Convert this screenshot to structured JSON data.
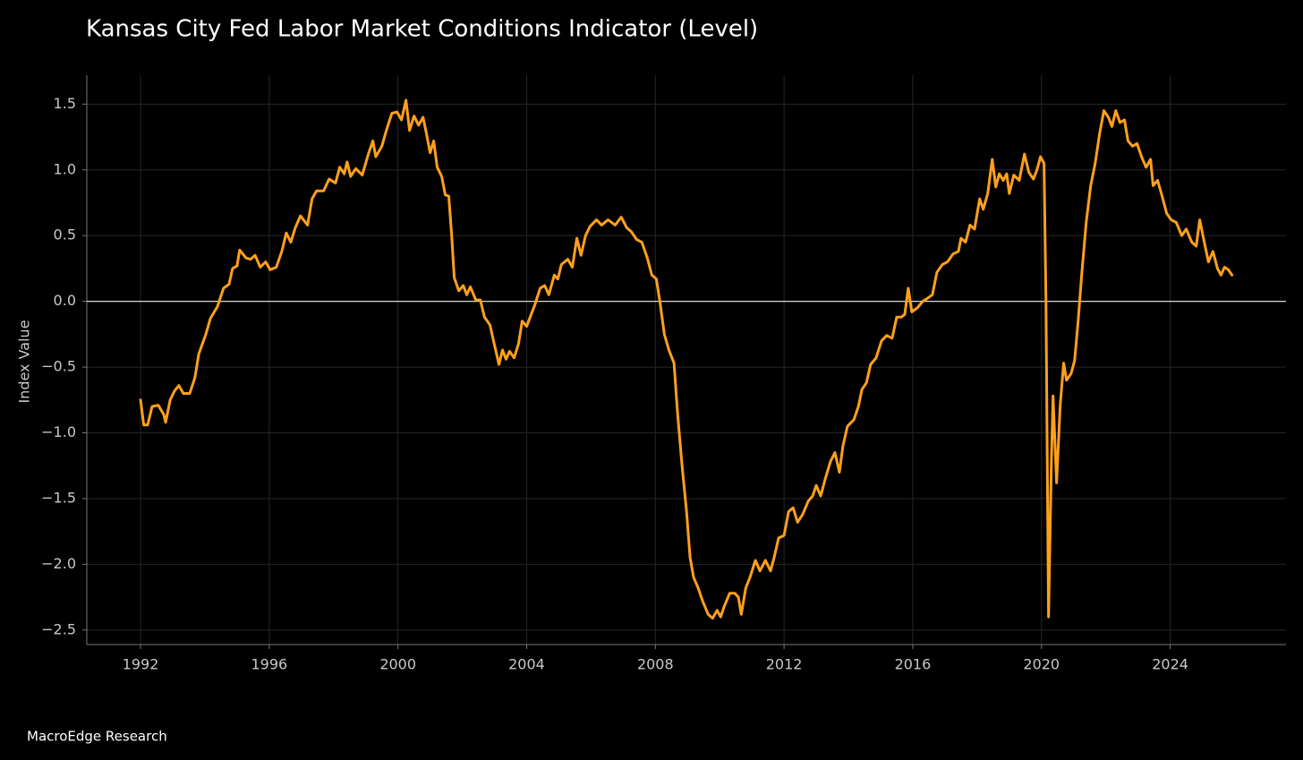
{
  "chart_data": {
    "type": "line",
    "title": "Kansas City Fed Labor Market Conditions Indicator (Level)",
    "y_label": "Index Value",
    "source": "MacroEdge Research",
    "color": "#ffa01c",
    "grid": true,
    "zero_line": true,
    "xlim": [
      1990.33,
      2027.6
    ],
    "ylim": [
      -2.61,
      1.72
    ],
    "xticks": [
      1992,
      1996,
      2000,
      2004,
      2008,
      2012,
      2016,
      2020,
      2024
    ],
    "yticks": [
      {
        "value": -2.5,
        "label": "−2.5"
      },
      {
        "value": -2.0,
        "label": "−2.0"
      },
      {
        "value": -1.5,
        "label": "−1.5"
      },
      {
        "value": -1.0,
        "label": "−1.0"
      },
      {
        "value": -0.5,
        "label": "−0.5"
      },
      {
        "value": 0.0,
        "label": "0.0"
      },
      {
        "value": 0.5,
        "label": "0.5"
      },
      {
        "value": 1.0,
        "label": "1.0"
      },
      1.5
    ],
    "x": [
      1992.0,
      1992.1,
      1992.22,
      1992.36,
      1992.55,
      1992.72,
      1992.78,
      1992.92,
      1993.06,
      1993.19,
      1993.33,
      1993.53,
      1993.69,
      1993.81,
      1994.03,
      1994.17,
      1994.39,
      1994.58,
      1994.75,
      1994.86,
      1995.0,
      1995.08,
      1995.28,
      1995.42,
      1995.56,
      1995.72,
      1995.89,
      1996.03,
      1996.22,
      1996.39,
      1996.53,
      1996.67,
      1996.81,
      1996.97,
      1997.19,
      1997.33,
      1997.47,
      1997.69,
      1997.86,
      1998.06,
      1998.19,
      1998.33,
      1998.42,
      1998.53,
      1998.69,
      1998.89,
      1999.08,
      1999.22,
      1999.31,
      1999.5,
      1999.64,
      1999.81,
      1999.97,
      2000.11,
      2000.25,
      2000.36,
      2000.5,
      2000.64,
      2000.78,
      2000.89,
      2001.0,
      2001.11,
      2001.22,
      2001.36,
      2001.47,
      2001.58,
      2001.67,
      2001.75,
      2001.89,
      2002.03,
      2002.14,
      2002.25,
      2002.42,
      2002.56,
      2002.69,
      2002.86,
      2002.97,
      2003.14,
      2003.25,
      2003.36,
      2003.47,
      2003.61,
      2003.75,
      2003.86,
      2004.0,
      2004.14,
      2004.25,
      2004.42,
      2004.56,
      2004.69,
      2004.86,
      2004.97,
      2005.08,
      2005.28,
      2005.42,
      2005.56,
      2005.69,
      2005.83,
      2005.97,
      2006.17,
      2006.33,
      2006.53,
      2006.75,
      2006.94,
      2007.11,
      2007.25,
      2007.42,
      2007.58,
      2007.75,
      2007.89,
      2008.03,
      2008.14,
      2008.28,
      2008.42,
      2008.58,
      2008.69,
      2008.83,
      2008.97,
      2009.08,
      2009.19,
      2009.33,
      2009.47,
      2009.64,
      2009.78,
      2009.92,
      2010.03,
      2010.14,
      2010.31,
      2010.47,
      2010.58,
      2010.67,
      2010.81,
      2010.94,
      2011.11,
      2011.25,
      2011.42,
      2011.58,
      2011.69,
      2011.83,
      2012.0,
      2012.14,
      2012.28,
      2012.42,
      2012.58,
      2012.75,
      2012.89,
      2013.0,
      2013.14,
      2013.28,
      2013.44,
      2013.58,
      2013.72,
      2013.83,
      2013.97,
      2014.17,
      2014.31,
      2014.42,
      2014.56,
      2014.69,
      2014.86,
      2015.03,
      2015.19,
      2015.36,
      2015.5,
      2015.64,
      2015.75,
      2015.86,
      2015.97,
      2016.14,
      2016.31,
      2016.44,
      2016.61,
      2016.75,
      2016.92,
      2017.08,
      2017.25,
      2017.42,
      2017.5,
      2017.64,
      2017.78,
      2017.92,
      2018.08,
      2018.19,
      2018.33,
      2018.47,
      2018.58,
      2018.69,
      2018.81,
      2018.92,
      2019.0,
      2019.14,
      2019.31,
      2019.47,
      2019.61,
      2019.75,
      2019.86,
      2019.97,
      2020.08,
      2020.14,
      2020.19,
      2020.22,
      2020.31,
      2020.36,
      2020.47,
      2020.58,
      2020.69,
      2020.78,
      2020.92,
      2021.03,
      2021.14,
      2021.25,
      2021.39,
      2021.53,
      2021.67,
      2021.81,
      2021.94,
      2022.08,
      2022.19,
      2022.31,
      2022.44,
      2022.58,
      2022.69,
      2022.83,
      2022.97,
      2023.11,
      2023.25,
      2023.39,
      2023.47,
      2023.61,
      2023.75,
      2023.89,
      2024.03,
      2024.19,
      2024.36,
      2024.5,
      2024.67,
      2024.81,
      2024.92,
      2025.06,
      2025.19,
      2025.33,
      2025.47,
      2025.58,
      2025.69,
      2025.81,
      2025.92
    ],
    "values": [
      -0.75,
      -0.94,
      -0.94,
      -0.8,
      -0.79,
      -0.86,
      -0.92,
      -0.75,
      -0.68,
      -0.64,
      -0.7,
      -0.7,
      -0.58,
      -0.4,
      -0.25,
      -0.13,
      -0.04,
      0.1,
      0.13,
      0.25,
      0.27,
      0.39,
      0.33,
      0.32,
      0.35,
      0.26,
      0.3,
      0.24,
      0.26,
      0.38,
      0.52,
      0.45,
      0.56,
      0.65,
      0.58,
      0.78,
      0.84,
      0.84,
      0.93,
      0.9,
      1.02,
      0.97,
      1.06,
      0.95,
      1.01,
      0.96,
      1.12,
      1.22,
      1.1,
      1.18,
      1.3,
      1.43,
      1.44,
      1.38,
      1.53,
      1.3,
      1.41,
      1.34,
      1.4,
      1.27,
      1.13,
      1.22,
      1.02,
      0.95,
      0.81,
      0.8,
      0.5,
      0.18,
      0.08,
      0.12,
      0.05,
      0.11,
      0.01,
      0.01,
      -0.12,
      -0.18,
      -0.3,
      -0.48,
      -0.37,
      -0.44,
      -0.38,
      -0.43,
      -0.32,
      -0.15,
      -0.19,
      -0.1,
      -0.03,
      0.1,
      0.12,
      0.05,
      0.2,
      0.17,
      0.28,
      0.32,
      0.26,
      0.48,
      0.35,
      0.5,
      0.57,
      0.62,
      0.58,
      0.62,
      0.58,
      0.64,
      0.56,
      0.53,
      0.47,
      0.45,
      0.33,
      0.2,
      0.17,
      0.0,
      -0.25,
      -0.37,
      -0.47,
      -0.85,
      -1.25,
      -1.6,
      -1.95,
      -2.1,
      -2.18,
      -2.28,
      -2.38,
      -2.41,
      -2.35,
      -2.4,
      -2.32,
      -2.22,
      -2.22,
      -2.25,
      -2.38,
      -2.18,
      -2.1,
      -1.97,
      -2.05,
      -1.97,
      -2.05,
      -1.95,
      -1.8,
      -1.78,
      -1.6,
      -1.57,
      -1.68,
      -1.62,
      -1.52,
      -1.48,
      -1.4,
      -1.48,
      -1.35,
      -1.22,
      -1.15,
      -1.3,
      -1.1,
      -0.95,
      -0.9,
      -0.8,
      -0.67,
      -0.62,
      -0.48,
      -0.43,
      -0.3,
      -0.26,
      -0.28,
      -0.12,
      -0.12,
      -0.1,
      0.1,
      -0.08,
      -0.05,
      0.0,
      0.02,
      0.05,
      0.22,
      0.28,
      0.3,
      0.36,
      0.38,
      0.48,
      0.45,
      0.58,
      0.55,
      0.78,
      0.7,
      0.82,
      1.08,
      0.87,
      0.97,
      0.92,
      0.97,
      0.82,
      0.96,
      0.92,
      1.12,
      0.98,
      0.93,
      1.0,
      1.1,
      1.05,
      0.0,
      -1.5,
      -2.4,
      -1.2,
      -0.72,
      -1.38,
      -0.8,
      -0.47,
      -0.6,
      -0.55,
      -0.45,
      -0.15,
      0.2,
      0.6,
      0.88,
      1.05,
      1.28,
      1.45,
      1.4,
      1.33,
      1.45,
      1.36,
      1.38,
      1.22,
      1.18,
      1.2,
      1.1,
      1.02,
      1.08,
      0.88,
      0.92,
      0.8,
      0.67,
      0.62,
      0.6,
      0.5,
      0.55,
      0.45,
      0.42,
      0.62,
      0.45,
      0.3,
      0.38,
      0.25,
      0.2,
      0.26,
      0.24,
      0.2
    ]
  }
}
